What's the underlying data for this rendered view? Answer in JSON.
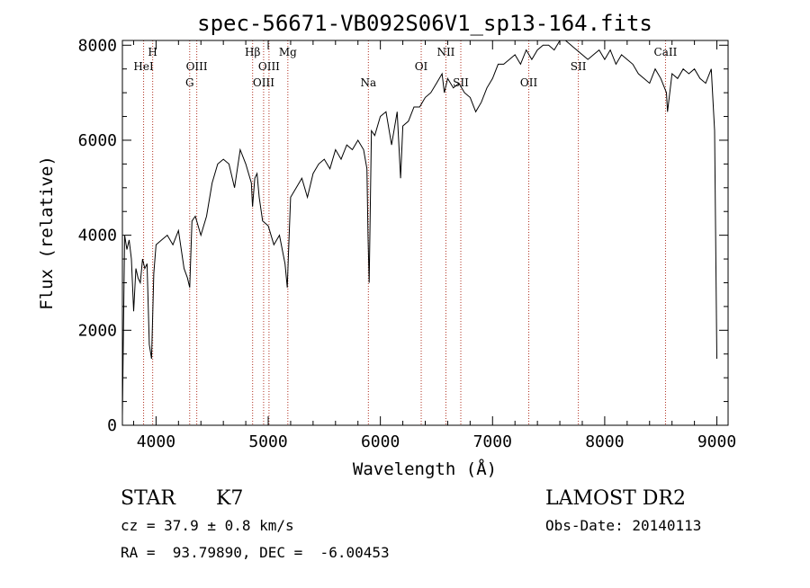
{
  "chart_data": {
    "type": "line",
    "title": "spec-56671-VB092S06V1_sp13-164.fits",
    "xlabel": "Wavelength (Å)",
    "ylabel": "Flux (relative)",
    "xlim": [
      3700,
      9100
    ],
    "ylim": [
      0,
      8100
    ],
    "x_ticks": [
      4000,
      5000,
      6000,
      7000,
      8000,
      9000
    ],
    "y_ticks": [
      0,
      2000,
      4000,
      6000,
      8000
    ],
    "grid": false,
    "series": [
      {
        "color": "#000000",
        "x": [
          3700,
          3720,
          3740,
          3760,
          3780,
          3800,
          3820,
          3840,
          3860,
          3880,
          3900,
          3920,
          3940,
          3960,
          3980,
          4000,
          4050,
          4100,
          4150,
          4200,
          4250,
          4280,
          4300,
          4320,
          4350,
          4400,
          4450,
          4500,
          4550,
          4600,
          4650,
          4700,
          4750,
          4800,
          4850,
          4860,
          4880,
          4900,
          4920,
          4950,
          5000,
          5050,
          5100,
          5150,
          5170,
          5180,
          5200,
          5250,
          5300,
          5350,
          5400,
          5450,
          5500,
          5550,
          5600,
          5650,
          5700,
          5750,
          5800,
          5850,
          5880,
          5890,
          5900,
          5920,
          5950,
          6000,
          6050,
          6100,
          6150,
          6180,
          6200,
          6250,
          6300,
          6350,
          6400,
          6450,
          6500,
          6550,
          6570,
          6600,
          6650,
          6700,
          6750,
          6800,
          6850,
          6900,
          6950,
          7000,
          7050,
          7100,
          7150,
          7200,
          7250,
          7300,
          7350,
          7400,
          7450,
          7500,
          7550,
          7600,
          7650,
          7700,
          7750,
          7800,
          7850,
          7900,
          7950,
          8000,
          8050,
          8100,
          8150,
          8200,
          8250,
          8300,
          8350,
          8400,
          8450,
          8500,
          8550,
          8560,
          8600,
          8650,
          8700,
          8750,
          8800,
          8850,
          8900,
          8950,
          8980,
          9000
        ],
        "values": [
          200,
          4000,
          3700,
          3900,
          3500,
          2400,
          3300,
          3100,
          3000,
          3500,
          3300,
          3400,
          1700,
          1400,
          3200,
          3800,
          3900,
          4000,
          3800,
          4100,
          3300,
          3100,
          2900,
          4300,
          4400,
          4000,
          4400,
          5100,
          5500,
          5600,
          5500,
          5000,
          5800,
          5500,
          5100,
          4600,
          5200,
          5300,
          4800,
          4300,
          4200,
          3800,
          4000,
          3400,
          2900,
          3600,
          4800,
          5000,
          5200,
          4800,
          5300,
          5500,
          5600,
          5400,
          5800,
          5600,
          5900,
          5800,
          6000,
          5800,
          5400,
          4000,
          3000,
          6200,
          6100,
          6500,
          6600,
          5900,
          6600,
          5200,
          6300,
          6400,
          6700,
          6700,
          6900,
          7000,
          7200,
          7400,
          7000,
          7300,
          7100,
          7200,
          7000,
          6900,
          6600,
          6800,
          7100,
          7300,
          7600,
          7600,
          7700,
          7800,
          7600,
          7900,
          7700,
          7900,
          8000,
          8000,
          7900,
          8100,
          8100,
          8000,
          7900,
          7800,
          7700,
          7800,
          7900,
          7700,
          7900,
          7600,
          7800,
          7700,
          7600,
          7400,
          7300,
          7200,
          7500,
          7300,
          7000,
          6600,
          7400,
          7300,
          7500,
          7400,
          7500,
          7300,
          7200,
          7500,
          6200,
          1400
        ]
      }
    ],
    "line_markers": [
      {
        "wavelength": 3889,
        "label": "HeI",
        "row": 2
      },
      {
        "wavelength": 3970,
        "label": "H",
        "row": 1
      },
      {
        "wavelength": 4300,
        "label": "G",
        "row": 3
      },
      {
        "wavelength": 4363,
        "label": "OIII",
        "row": 2
      },
      {
        "wavelength": 4861,
        "label": "Hβ",
        "row": 1
      },
      {
        "wavelength": 4959,
        "label": "OIII",
        "row": 3
      },
      {
        "wavelength": 5007,
        "label": "OIII",
        "row": 2
      },
      {
        "wavelength": 5175,
        "label": "Mg",
        "row": 1
      },
      {
        "wavelength": 5893,
        "label": "Na",
        "row": 3
      },
      {
        "wavelength": 6364,
        "label": "OI",
        "row": 2
      },
      {
        "wavelength": 6584,
        "label": "NII",
        "row": 1
      },
      {
        "wavelength": 6717,
        "label": "SII",
        "row": 3
      },
      {
        "wavelength": 7323,
        "label": "OII",
        "row": 3
      },
      {
        "wavelength": 7765,
        "label": "SII",
        "row": 2
      },
      {
        "wavelength": 8542,
        "label": "CaII",
        "row": 1
      }
    ],
    "marker_color": "#b03020"
  },
  "info": {
    "object_type": "STAR",
    "subclass": "K7",
    "survey": "LAMOST DR2",
    "cz": "cz = 37.9 ± 0.8 km/s",
    "obs_date": "Obs-Date: 20140113",
    "coords": "RA =  93.79890, DEC =  -6.00453"
  }
}
